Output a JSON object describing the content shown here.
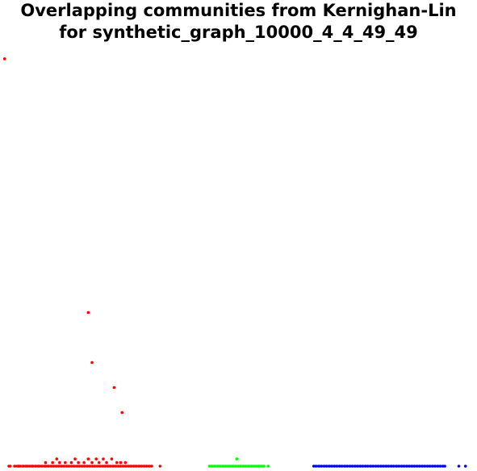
{
  "chart_data": {
    "type": "scatter",
    "title_lines": [
      "Overlapping communities from Kernighan-Lin",
      "for synthetic_graph_10000_4_4_49_49"
    ],
    "xlabel": "",
    "ylabel": "",
    "axes_visible": false,
    "grid": false,
    "legend": "none",
    "series": [
      {
        "color": "#ff0000",
        "points": [
          [
            0.3,
            115
          ],
          [
            1.2,
            1
          ],
          [
            1.5,
            1
          ],
          [
            2.4,
            1
          ],
          [
            3.1,
            1
          ],
          [
            3.3,
            1
          ],
          [
            3.6,
            1
          ],
          [
            4.2,
            1
          ],
          [
            4.8,
            1
          ],
          [
            5.1,
            1
          ],
          [
            5.6,
            1
          ],
          [
            6.0,
            1
          ],
          [
            6.3,
            1
          ],
          [
            6.9,
            1
          ],
          [
            7.4,
            1
          ],
          [
            7.7,
            1
          ],
          [
            8.2,
            1
          ],
          [
            8.8,
            1
          ],
          [
            9.1,
            1
          ],
          [
            9.6,
            1
          ],
          [
            10.2,
            1
          ],
          [
            10.7,
            1
          ],
          [
            11.3,
            1
          ],
          [
            11.8,
            1
          ],
          [
            12.4,
            1
          ],
          [
            12.9,
            1
          ],
          [
            13.5,
            1
          ],
          [
            14.0,
            1
          ],
          [
            14.6,
            1
          ],
          [
            15.1,
            1
          ],
          [
            15.7,
            1
          ],
          [
            16.2,
            1
          ],
          [
            16.8,
            1
          ],
          [
            17.3,
            1
          ],
          [
            17.9,
            1
          ],
          [
            18.4,
            1
          ],
          [
            19.0,
            1
          ],
          [
            19.5,
            1
          ],
          [
            20.1,
            1
          ],
          [
            20.6,
            1
          ],
          [
            21.2,
            1
          ],
          [
            21.7,
            1
          ],
          [
            22.3,
            1
          ],
          [
            22.8,
            1
          ],
          [
            23.4,
            1
          ],
          [
            23.9,
            1
          ],
          [
            24.5,
            1
          ],
          [
            25.0,
            1
          ],
          [
            25.6,
            1
          ],
          [
            26.1,
            1
          ],
          [
            26.7,
            1
          ],
          [
            27.2,
            1
          ],
          [
            27.8,
            1
          ],
          [
            28.3,
            1
          ],
          [
            28.9,
            1
          ],
          [
            29.4,
            1
          ],
          [
            30.0,
            1
          ],
          [
            30.5,
            1
          ],
          [
            31.1,
            1
          ],
          [
            31.6,
            1
          ],
          [
            33.4,
            1
          ],
          [
            9.0,
            2
          ],
          [
            10.5,
            2
          ],
          [
            11.4,
            3
          ],
          [
            12.0,
            2
          ],
          [
            13.2,
            2
          ],
          [
            14.5,
            2
          ],
          [
            15.3,
            3
          ],
          [
            16.0,
            2
          ],
          [
            17.2,
            2
          ],
          [
            18.1,
            3
          ],
          [
            18.9,
            2
          ],
          [
            19.8,
            3
          ],
          [
            20.4,
            2
          ],
          [
            21.3,
            3
          ],
          [
            22.0,
            2
          ],
          [
            23.1,
            3
          ],
          [
            24.2,
            2
          ],
          [
            25.0,
            2
          ],
          [
            26.0,
            2
          ],
          [
            18.1,
            44
          ],
          [
            18.9,
            30
          ],
          [
            23.6,
            23
          ],
          [
            25.3,
            16
          ]
        ]
      },
      {
        "color": "#00ff00",
        "points": [
          [
            43.9,
            1
          ],
          [
            44.5,
            1
          ],
          [
            45.0,
            1
          ],
          [
            45.6,
            1
          ],
          [
            46.1,
            1
          ],
          [
            46.7,
            1
          ],
          [
            47.2,
            1
          ],
          [
            47.8,
            1
          ],
          [
            48.3,
            1
          ],
          [
            48.9,
            1
          ],
          [
            49.4,
            1
          ],
          [
            50.0,
            1
          ],
          [
            50.5,
            1
          ],
          [
            51.1,
            1
          ],
          [
            51.6,
            1
          ],
          [
            52.2,
            1
          ],
          [
            52.7,
            1
          ],
          [
            53.3,
            1
          ],
          [
            53.8,
            1
          ],
          [
            54.4,
            1
          ],
          [
            54.9,
            1
          ],
          [
            55.5,
            1
          ],
          [
            56.4,
            1
          ],
          [
            49.7,
            3
          ]
        ]
      },
      {
        "color": "#0000ff",
        "points": [
          [
            66.1,
            1
          ],
          [
            66.6,
            1
          ],
          [
            67.2,
            1
          ],
          [
            67.7,
            1
          ],
          [
            68.3,
            1
          ],
          [
            68.8,
            1
          ],
          [
            69.4,
            1
          ],
          [
            69.9,
            1
          ],
          [
            70.5,
            1
          ],
          [
            71.0,
            1
          ],
          [
            71.6,
            1
          ],
          [
            72.1,
            1
          ],
          [
            72.7,
            1
          ],
          [
            73.2,
            1
          ],
          [
            73.8,
            1
          ],
          [
            74.3,
            1
          ],
          [
            74.9,
            1
          ],
          [
            75.4,
            1
          ],
          [
            76.0,
            1
          ],
          [
            76.5,
            1
          ],
          [
            77.1,
            1
          ],
          [
            77.6,
            1
          ],
          [
            78.2,
            1
          ],
          [
            78.7,
            1
          ],
          [
            79.3,
            1
          ],
          [
            79.8,
            1
          ],
          [
            80.4,
            1
          ],
          [
            80.9,
            1
          ],
          [
            81.5,
            1
          ],
          [
            82.0,
            1
          ],
          [
            82.6,
            1
          ],
          [
            83.1,
            1
          ],
          [
            83.7,
            1
          ],
          [
            84.2,
            1
          ],
          [
            84.8,
            1
          ],
          [
            85.3,
            1
          ],
          [
            85.9,
            1
          ],
          [
            86.4,
            1
          ],
          [
            87.0,
            1
          ],
          [
            87.5,
            1
          ],
          [
            88.1,
            1
          ],
          [
            88.6,
            1
          ],
          [
            89.2,
            1
          ],
          [
            89.7,
            1
          ],
          [
            90.3,
            1
          ],
          [
            90.8,
            1
          ],
          [
            91.4,
            1
          ],
          [
            91.9,
            1
          ],
          [
            92.5,
            1
          ],
          [
            93.0,
            1
          ],
          [
            93.6,
            1
          ],
          [
            94.0,
            1
          ],
          [
            97.0,
            1
          ],
          [
            98.4,
            1
          ]
        ]
      }
    ],
    "xlim": [
      0,
      100
    ],
    "ylim": [
      0,
      116
    ]
  }
}
